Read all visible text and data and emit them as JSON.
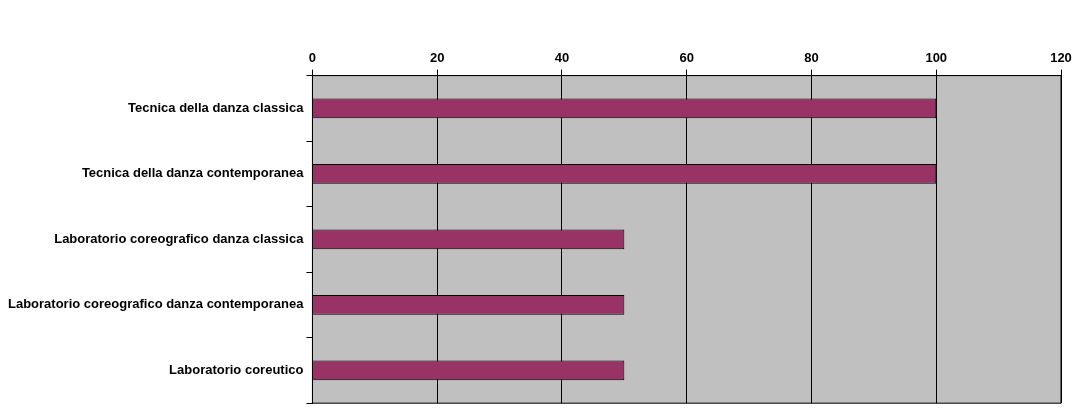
{
  "chart_data": {
    "type": "bar",
    "orientation": "horizontal",
    "categories": [
      "Tecnica della danza classica",
      "Tecnica della danza contemporanea",
      "Laboratorio coreografico danza classica",
      "Laboratorio coreografico danza contemporanea",
      "Laboratorio coreutico"
    ],
    "values": [
      100,
      100,
      50,
      50,
      50
    ],
    "color": "#993366",
    "xlim": [
      0,
      120
    ],
    "xticks": [
      0,
      20,
      40,
      60,
      80,
      100,
      120
    ],
    "grid": "x",
    "legend": false
  }
}
